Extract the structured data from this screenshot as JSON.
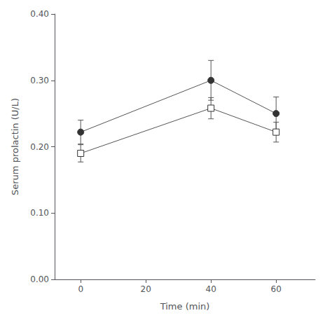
{
  "chart_data": {
    "type": "line",
    "x_label": "Time (min)",
    "y_label": "Serum prolactin (U/L)",
    "x": [
      0,
      40,
      60
    ],
    "series": [
      {
        "type": "line",
        "color": "#555555",
        "marker": "circle",
        "values": [
          0.222,
          0.3,
          0.25
        ],
        "yerr": [
          0.018,
          0.03,
          0.025
        ]
      },
      {
        "type": "line",
        "color": "#555555",
        "marker": "square-open",
        "values": [
          0.19,
          0.258,
          0.222
        ],
        "yerr": [
          0.013,
          0.016,
          0.015
        ]
      }
    ],
    "xlim": [
      -8,
      72
    ],
    "xticks": [
      0,
      20,
      40,
      60
    ],
    "ylim": [
      0.0,
      0.4
    ],
    "yticks": [
      {
        "value": 0.0,
        "label": "0.00"
      },
      {
        "value": 0.1,
        "label": "0.10"
      },
      {
        "value": 0.2,
        "label": "0.20"
      },
      {
        "value": 0.3,
        "label": "0.30"
      },
      {
        "value": 0.4,
        "label": "0.40"
      }
    ],
    "grid": false
  }
}
